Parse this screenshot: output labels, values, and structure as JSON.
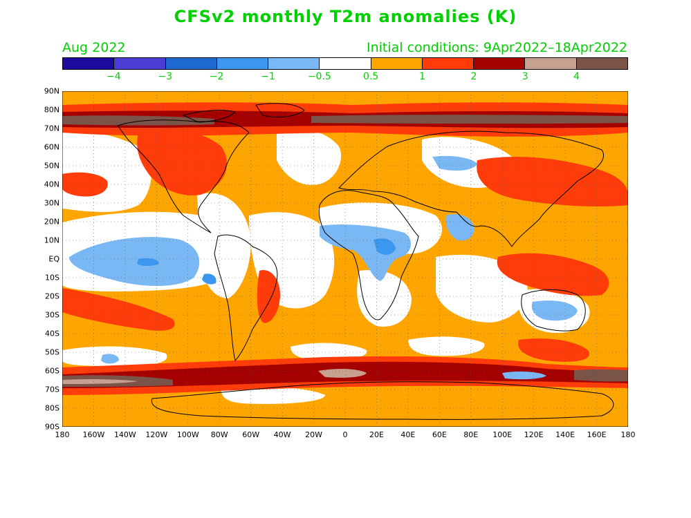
{
  "title": "CFSv2 monthly T2m anomalies (K)",
  "forecast_month": "Aug 2022",
  "initial_conditions": "Initial conditions: 9Apr2022–18Apr2022",
  "colorbar": {
    "colors": [
      "#1e0ba0",
      "#4b3dd6",
      "#1f6ad1",
      "#3c97f0",
      "#7ab8f5",
      "#ffffff",
      "#ffa500",
      "#ff3c0a",
      "#a50000",
      "#c8a090",
      "#7a5448"
    ],
    "labels": [
      "−4",
      "−3",
      "−2",
      "−1",
      "−0.5",
      "0.5",
      "1",
      "2",
      "3",
      "4"
    ]
  },
  "map": {
    "lat_labels": [
      "90N",
      "80N",
      "70N",
      "60N",
      "50N",
      "40N",
      "30N",
      "20N",
      "10N",
      "EQ",
      "10S",
      "20S",
      "30S",
      "40S",
      "50S",
      "60S",
      "70S",
      "80S",
      "90S"
    ],
    "lon_labels": [
      "180",
      "160W",
      "140W",
      "120W",
      "100W",
      "80W",
      "60W",
      "40W",
      "20W",
      "0",
      "20E",
      "40E",
      "60E",
      "80E",
      "100E",
      "120E",
      "140E",
      "160E",
      "180"
    ]
  }
}
